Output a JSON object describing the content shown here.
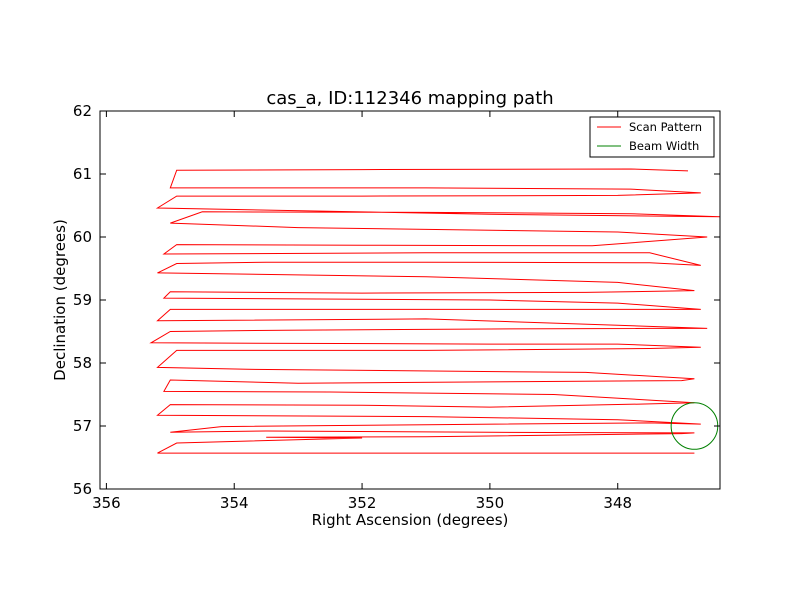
{
  "chart_data": {
    "type": "line",
    "title": "cas_a, ID:112346 mapping path",
    "xlabel": "Right Ascension (degrees)",
    "ylabel": "Declination (degrees)",
    "xlim": [
      356.1,
      346.4
    ],
    "ylim": [
      56,
      62
    ],
    "x_ticks": [
      356,
      354,
      352,
      350,
      348
    ],
    "y_ticks": [
      56,
      57,
      58,
      59,
      60,
      61,
      62
    ],
    "x_tick_labels": [
      "356",
      "354",
      "352",
      "350",
      "348"
    ],
    "y_tick_labels": [
      "56",
      "57",
      "58",
      "59",
      "60",
      "61",
      "62"
    ],
    "grid": false,
    "legend_position": "top-right",
    "series": [
      {
        "name": "Scan Pattern",
        "color": "#ff0000",
        "type": "line",
        "x": [
          346.8,
          351.0,
          352.0,
          355.2,
          354.9,
          352.0,
          353.5,
          351.0,
          347.0,
          346.8,
          350.0,
          353.5,
          355.0,
          354.2,
          351.0,
          347.5,
          346.7,
          348.0,
          351.0,
          355.2,
          355.0,
          352.0,
          350.0,
          347.5,
          346.8,
          349.0,
          352.5,
          355.1,
          355.0,
          353.0,
          350.0,
          347.0,
          346.8,
          348.5,
          353.8,
          355.2,
          354.9,
          353.5,
          351.0,
          347.5,
          346.7,
          348.0,
          350.0,
          355.3,
          355.0,
          353.2,
          350.0,
          347.5,
          346.6,
          348.0,
          351.0,
          355.2,
          355.0,
          351.0,
          347.8,
          346.7,
          348.0,
          350.0,
          355.1,
          355.0,
          352.0,
          348.5,
          346.8,
          348.0,
          351.0,
          355.2,
          354.9,
          353.5,
          351.0,
          347.5,
          346.7,
          347.5,
          351.0,
          355.1,
          354.9,
          352.0,
          348.4,
          346.6,
          348.0,
          353.0,
          355.0,
          354.5,
          351.0,
          347.8,
          346.4,
          350.0,
          355.2,
          354.9,
          352.0,
          348.0,
          346.7,
          347.8,
          351.0,
          355.0,
          354.9,
          352.0,
          347.8,
          346.9
        ],
        "y": [
          56.57,
          56.57,
          56.57,
          56.57,
          56.73,
          56.81,
          56.82,
          56.83,
          56.88,
          56.89,
          56.9,
          56.92,
          56.9,
          56.99,
          57.02,
          57.05,
          57.03,
          57.1,
          57.15,
          57.17,
          57.34,
          57.33,
          57.3,
          57.35,
          57.37,
          57.5,
          57.54,
          57.55,
          57.73,
          57.68,
          57.7,
          57.72,
          57.75,
          57.85,
          57.9,
          57.93,
          58.2,
          58.2,
          58.2,
          58.23,
          58.25,
          58.3,
          58.3,
          58.32,
          58.5,
          58.52,
          58.54,
          58.55,
          58.55,
          58.6,
          58.7,
          58.67,
          58.85,
          58.85,
          58.85,
          58.85,
          58.95,
          59.0,
          59.03,
          59.13,
          59.11,
          59.12,
          59.15,
          59.28,
          59.37,
          59.43,
          59.58,
          59.6,
          59.6,
          59.59,
          59.55,
          59.75,
          59.75,
          59.73,
          59.88,
          59.87,
          59.86,
          60.0,
          60.08,
          60.15,
          60.22,
          60.4,
          60.39,
          60.37,
          60.32,
          60.36,
          60.46,
          60.65,
          60.65,
          60.66,
          60.7,
          60.76,
          60.78,
          60.78,
          61.06,
          61.07,
          61.08,
          61.05
        ]
      },
      {
        "name": "Beam Width",
        "color": "#008000",
        "type": "circle",
        "center": [
          346.8,
          57.0
        ],
        "radius_dec": 0.37
      }
    ],
    "legend": [
      "Scan Pattern",
      "Beam Width"
    ]
  }
}
